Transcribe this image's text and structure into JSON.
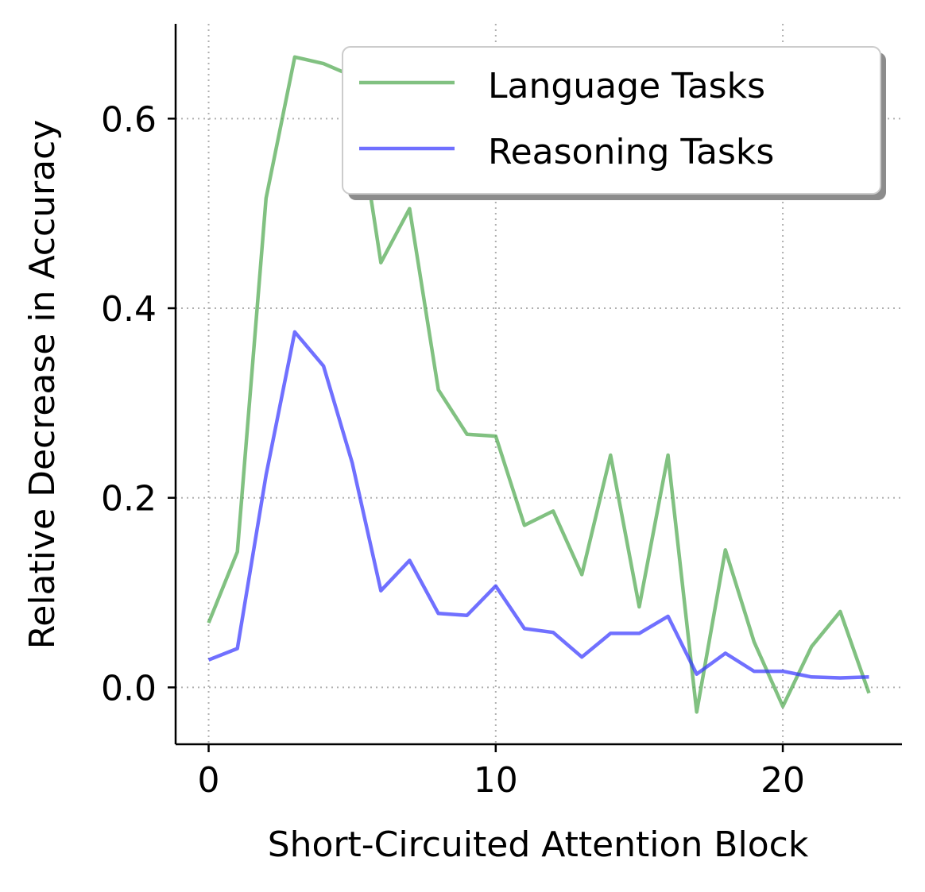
{
  "chart_data": {
    "type": "line",
    "xlabel": "Short-Circuited Attention Block",
    "ylabel": "Relative Decrease in Accuracy",
    "xlim": [
      -1.15,
      24.15
    ],
    "ylim": [
      -0.06,
      0.7
    ],
    "xticks": [
      0,
      10,
      20
    ],
    "yticks": [
      0.0,
      0.2,
      0.4,
      0.6
    ],
    "xtick_labels": [
      "0",
      "10",
      "20"
    ],
    "ytick_labels": [
      "0.0",
      "0.2",
      "0.4",
      "0.6"
    ],
    "grid": true,
    "legend_position": "top-right",
    "x": [
      0,
      1,
      2,
      3,
      4,
      5,
      6,
      7,
      8,
      9,
      10,
      11,
      12,
      13,
      14,
      15,
      16,
      17,
      18,
      19,
      20,
      21,
      22,
      23
    ],
    "series": [
      {
        "name": "Language Tasks",
        "color": "#4ca64c",
        "values": [
          0.068,
          0.143,
          0.516,
          0.665,
          0.658,
          0.645,
          0.448,
          0.505,
          0.314,
          0.267,
          0.265,
          0.171,
          0.186,
          0.119,
          0.245,
          0.085,
          0.245,
          -0.026,
          0.145,
          0.048,
          -0.02,
          0.043,
          0.08,
          -0.006
        ]
      },
      {
        "name": "Reasoning Tasks",
        "color": "#3333ff",
        "values": [
          0.029,
          0.041,
          0.224,
          0.375,
          0.339,
          0.237,
          0.102,
          0.134,
          0.078,
          0.076,
          0.107,
          0.062,
          0.058,
          0.032,
          0.057,
          0.057,
          0.075,
          0.014,
          0.036,
          0.017,
          0.017,
          0.011,
          0.01,
          0.011
        ]
      }
    ]
  }
}
